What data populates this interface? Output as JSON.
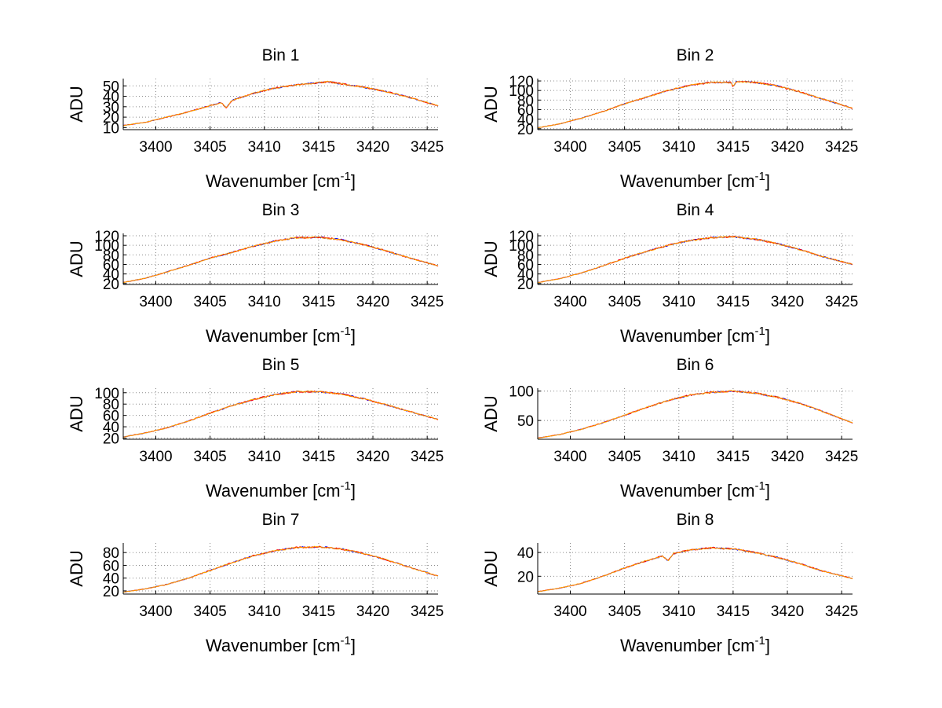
{
  "chart_data": [
    {
      "type": "line",
      "title": "Bin 1",
      "xlabel": "Wavenumber [cm",
      "xlabel_sup": "-1",
      "xlabel_tail": "]",
      "ylabel": "ADU",
      "xlim": [
        3397,
        3426
      ],
      "ylim": [
        8,
        57
      ],
      "grid": true,
      "xticks": [
        3400,
        3405,
        3410,
        3415,
        3420,
        3425
      ],
      "yticks": [
        10,
        20,
        30,
        40,
        50
      ],
      "series_colors": [
        "#0000ff",
        "#ff0000",
        "#ffa500"
      ],
      "x": [
        3397,
        3399,
        3401,
        3403,
        3405,
        3406,
        3406.5,
        3407,
        3409,
        3411,
        3413,
        3415,
        3416,
        3417,
        3419,
        3421,
        3423,
        3426
      ],
      "y": [
        12,
        15,
        20,
        25,
        31,
        34,
        29,
        36,
        43,
        48,
        51,
        53,
        54,
        52,
        49,
        45,
        40,
        31
      ]
    },
    {
      "type": "line",
      "title": "Bin 2",
      "xlabel": "Wavenumber [cm",
      "xlabel_sup": "-1",
      "xlabel_tail": "]",
      "ylabel": "ADU",
      "xlim": [
        3397,
        3426
      ],
      "ylim": [
        18,
        125
      ],
      "grid": true,
      "xticks": [
        3400,
        3405,
        3410,
        3415,
        3420,
        3425
      ],
      "yticks": [
        20,
        40,
        60,
        80,
        100,
        120
      ],
      "series_colors": [
        "#0000ff",
        "#ff0000",
        "#ffa500"
      ],
      "x": [
        3397,
        3399,
        3401,
        3403,
        3405,
        3407,
        3409,
        3411,
        3413,
        3414.8,
        3415,
        3415.3,
        3417,
        3419,
        3421,
        3423,
        3426
      ],
      "y": [
        22,
        30,
        42,
        56,
        72,
        86,
        100,
        111,
        117,
        117,
        108,
        119,
        117,
        110,
        98,
        84,
        63
      ]
    },
    {
      "type": "line",
      "title": "Bin 3",
      "xlabel": "Wavenumber [cm",
      "xlabel_sup": "-1",
      "xlabel_tail": "]",
      "ylabel": "ADU",
      "xlim": [
        3397,
        3426
      ],
      "ylim": [
        18,
        125
      ],
      "grid": true,
      "xticks": [
        3400,
        3405,
        3410,
        3415,
        3420,
        3425
      ],
      "yticks": [
        20,
        40,
        60,
        80,
        100,
        120
      ],
      "series_colors": [
        "#0000ff",
        "#ff0000",
        "#ffa500"
      ],
      "x": [
        3397,
        3399,
        3401,
        3403,
        3405,
        3407,
        3409,
        3411,
        3413,
        3415,
        3417,
        3419,
        3421,
        3423,
        3426
      ],
      "y": [
        22,
        31,
        44,
        58,
        73,
        85,
        98,
        109,
        116,
        117,
        112,
        102,
        90,
        76,
        57
      ]
    },
    {
      "type": "line",
      "title": "Bin 4",
      "xlabel": "Wavenumber [cm",
      "xlabel_sup": "-1",
      "xlabel_tail": "]",
      "ylabel": "ADU",
      "xlim": [
        3397,
        3426
      ],
      "ylim": [
        18,
        125
      ],
      "grid": true,
      "xticks": [
        3400,
        3405,
        3410,
        3415,
        3420,
        3425
      ],
      "yticks": [
        20,
        40,
        60,
        80,
        100,
        120
      ],
      "series_colors": [
        "#0000ff",
        "#ff0000",
        "#ffa500"
      ],
      "x": [
        3397,
        3399,
        3401,
        3403,
        3405,
        3407,
        3409,
        3411,
        3413,
        3415,
        3417,
        3419,
        3421,
        3423,
        3426
      ],
      "y": [
        22,
        30,
        42,
        57,
        73,
        87,
        100,
        110,
        116,
        118,
        113,
        104,
        92,
        78,
        60
      ]
    },
    {
      "type": "line",
      "title": "Bin 5",
      "xlabel": "Wavenumber [cm",
      "xlabel_sup": "-1",
      "xlabel_tail": "]",
      "ylabel": "ADU",
      "xlim": [
        3397,
        3426
      ],
      "ylim": [
        18,
        108
      ],
      "grid": true,
      "xticks": [
        3400,
        3405,
        3410,
        3415,
        3420,
        3425
      ],
      "yticks": [
        20,
        40,
        60,
        80,
        100
      ],
      "series_colors": [
        "#0000ff",
        "#ff0000",
        "#ffa500"
      ],
      "x": [
        3397,
        3399,
        3401,
        3403,
        3405,
        3407,
        3409,
        3411,
        3413,
        3415,
        3417,
        3419,
        3421,
        3423,
        3426
      ],
      "y": [
        22,
        29,
        38,
        50,
        64,
        77,
        88,
        97,
        102,
        102,
        98,
        90,
        80,
        69,
        53
      ]
    },
    {
      "type": "line",
      "title": "Bin 6",
      "xlabel": "Wavenumber [cm",
      "xlabel_sup": "-1",
      "xlabel_tail": "]",
      "ylabel": "ADU",
      "xlim": [
        3397,
        3426
      ],
      "ylim": [
        18,
        105
      ],
      "grid": true,
      "xticks": [
        3400,
        3405,
        3410,
        3415,
        3420,
        3425
      ],
      "yticks": [
        50,
        100
      ],
      "series_colors": [
        "#0000ff",
        "#ff0000",
        "#ffa500"
      ],
      "x": [
        3397,
        3399,
        3401,
        3403,
        3405,
        3407,
        3409,
        3411,
        3413,
        3415,
        3417,
        3419,
        3421,
        3423,
        3425,
        3426
      ],
      "y": [
        20,
        26,
        35,
        46,
        59,
        72,
        84,
        93,
        98,
        100,
        97,
        90,
        80,
        67,
        53,
        46
      ]
    },
    {
      "type": "line",
      "title": "Bin 7",
      "xlabel": "Wavenumber [cm",
      "xlabel_sup": "-1",
      "xlabel_tail": "]",
      "ylabel": "ADU",
      "xlim": [
        3397,
        3426
      ],
      "ylim": [
        15,
        95
      ],
      "grid": true,
      "xticks": [
        3400,
        3405,
        3410,
        3415,
        3420,
        3425
      ],
      "yticks": [
        20,
        40,
        60,
        80
      ],
      "series_colors": [
        "#0000ff",
        "#ff0000",
        "#ffa500"
      ],
      "x": [
        3397,
        3399,
        3401,
        3403,
        3405,
        3407,
        3409,
        3411,
        3413,
        3415,
        3417,
        3419,
        3421,
        3423,
        3426
      ],
      "y": [
        18,
        23,
        30,
        40,
        52,
        64,
        75,
        83,
        88,
        89,
        86,
        79,
        70,
        59,
        43
      ]
    },
    {
      "type": "line",
      "title": "Bin 8",
      "xlabel": "Wavenumber [cm",
      "xlabel_sup": "-1",
      "xlabel_tail": "]",
      "ylabel": "ADU",
      "xlim": [
        3397,
        3426
      ],
      "ylim": [
        5,
        48
      ],
      "grid": true,
      "xticks": [
        3400,
        3405,
        3410,
        3415,
        3420,
        3425
      ],
      "yticks": [
        20,
        40
      ],
      "series_colors": [
        "#0000ff",
        "#ff0000",
        "#ffa500"
      ],
      "x": [
        3397,
        3399,
        3401,
        3403,
        3405,
        3407,
        3408.5,
        3409,
        3409.5,
        3411,
        3413,
        3415,
        3417,
        3419,
        3421,
        3423,
        3426
      ],
      "y": [
        7,
        10,
        14,
        20,
        27,
        33,
        37,
        33,
        39,
        42,
        44,
        43,
        40,
        36,
        31,
        25,
        18
      ]
    }
  ]
}
